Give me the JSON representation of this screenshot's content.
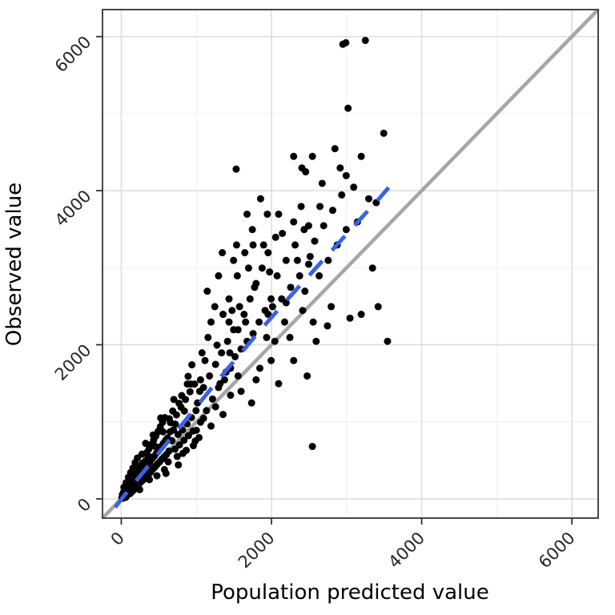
{
  "chart_data": {
    "type": "scatter",
    "title": "",
    "xlabel": "Population predicted value",
    "ylabel": "Observed value",
    "xlim": [
      -250,
      6350
    ],
    "ylim": [
      -250,
      6350
    ],
    "x_ticks": [
      0,
      2000,
      4000,
      6000
    ],
    "y_ticks": [
      0,
      2000,
      4000,
      6000
    ],
    "minor_ticks": [
      1000,
      3000,
      5000
    ],
    "grid": true,
    "tick_label_angle": 45,
    "legend": "none",
    "colors": {
      "point": "#000000",
      "identity_line": "#A6A6A6",
      "smooth_line": "#3A62E8",
      "grid_major": "#DEDEDE",
      "grid_minor": "#EFEFEF",
      "panel_border": "#333333",
      "tick": "#333333",
      "tick_text": "#262626",
      "panel_bg": "#FFFFFF"
    },
    "identity_line": {
      "from": [
        -250,
        -250
      ],
      "to": [
        6350,
        6350
      ],
      "width": 4.5
    },
    "smooth_line": {
      "width": 5,
      "dash": "24 18",
      "points": [
        [
          -80,
          -110
        ],
        [
          0,
          -5
        ],
        [
          200,
          235
        ],
        [
          400,
          475
        ],
        [
          600,
          715
        ],
        [
          800,
          955
        ],
        [
          1000,
          1195
        ],
        [
          1200,
          1435
        ],
        [
          1400,
          1670
        ],
        [
          1600,
          1900
        ],
        [
          1800,
          2130
        ],
        [
          2000,
          2355
        ],
        [
          2200,
          2575
        ],
        [
          2400,
          2790
        ],
        [
          2600,
          3005
        ],
        [
          2800,
          3220
        ],
        [
          3000,
          3435
        ],
        [
          3200,
          3650
        ],
        [
          3400,
          3860
        ],
        [
          3560,
          4040
        ]
      ]
    },
    "points": [
      [
        8,
        12
      ],
      [
        15,
        55
      ],
      [
        22,
        8
      ],
      [
        30,
        85
      ],
      [
        38,
        40
      ],
      [
        45,
        110
      ],
      [
        52,
        25
      ],
      [
        60,
        130
      ],
      [
        68,
        75
      ],
      [
        75,
        45
      ],
      [
        82,
        160
      ],
      [
        90,
        95
      ],
      [
        98,
        60
      ],
      [
        105,
        185
      ],
      [
        112,
        120
      ],
      [
        120,
        70
      ],
      [
        128,
        215
      ],
      [
        135,
        150
      ],
      [
        142,
        95
      ],
      [
        150,
        255
      ],
      [
        158,
        175
      ],
      [
        165,
        115
      ],
      [
        172,
        300
      ],
      [
        180,
        210
      ],
      [
        188,
        140
      ],
      [
        195,
        335
      ],
      [
        202,
        245
      ],
      [
        210,
        165
      ],
      [
        218,
        370
      ],
      [
        225,
        275
      ],
      [
        232,
        190
      ],
      [
        240,
        400
      ],
      [
        248,
        305
      ],
      [
        255,
        215
      ],
      [
        262,
        430
      ],
      [
        270,
        330
      ],
      [
        278,
        235
      ],
      [
        285,
        465
      ],
      [
        292,
        355
      ],
      [
        300,
        255
      ],
      [
        35,
        150
      ],
      [
        65,
        210
      ],
      [
        95,
        280
      ],
      [
        125,
        340
      ],
      [
        155,
        400
      ],
      [
        185,
        470
      ],
      [
        215,
        530
      ],
      [
        245,
        120
      ],
      [
        275,
        580
      ],
      [
        60,
        20
      ],
      [
        310,
        390
      ],
      [
        320,
        490
      ],
      [
        330,
        270
      ],
      [
        340,
        600
      ],
      [
        350,
        430
      ],
      [
        360,
        310
      ],
      [
        370,
        650
      ],
      [
        380,
        475
      ],
      [
        390,
        345
      ],
      [
        400,
        705
      ],
      [
        410,
        520
      ],
      [
        420,
        385
      ],
      [
        430,
        760
      ],
      [
        440,
        555
      ],
      [
        450,
        415
      ],
      [
        460,
        815
      ],
      [
        470,
        595
      ],
      [
        480,
        450
      ],
      [
        490,
        875
      ],
      [
        500,
        640
      ],
      [
        510,
        480
      ],
      [
        520,
        935
      ],
      [
        530,
        680
      ],
      [
        540,
        515
      ],
      [
        550,
        995
      ],
      [
        560,
        720
      ],
      [
        570,
        545
      ],
      [
        580,
        1055
      ],
      [
        590,
        760
      ],
      [
        600,
        575
      ],
      [
        325,
        720
      ],
      [
        375,
        250
      ],
      [
        425,
        830
      ],
      [
        475,
        300
      ],
      [
        525,
        1050
      ],
      [
        575,
        380
      ],
      [
        355,
        560
      ],
      [
        455,
        680
      ],
      [
        555,
        870
      ],
      [
        595,
        330
      ],
      [
        615,
        790
      ],
      [
        635,
        620
      ],
      [
        655,
        990
      ],
      [
        675,
        755
      ],
      [
        695,
        895
      ],
      [
        715,
        645
      ],
      [
        735,
        1090
      ],
      [
        755,
        835
      ],
      [
        775,
        700
      ],
      [
        795,
        1190
      ],
      [
        815,
        895
      ],
      [
        835,
        760
      ],
      [
        855,
        1290
      ],
      [
        875,
        975
      ],
      [
        895,
        820
      ],
      [
        915,
        1390
      ],
      [
        935,
        1055
      ],
      [
        955,
        880
      ],
      [
        975,
        1490
      ],
      [
        995,
        1145
      ],
      [
        625,
        480
      ],
      [
        685,
        1140
      ],
      [
        745,
        550
      ],
      [
        805,
        1340
      ],
      [
        865,
        630
      ],
      [
        925,
        1490
      ],
      [
        985,
        750
      ],
      [
        650,
        870
      ],
      [
        770,
        1240
      ],
      [
        890,
        1590
      ],
      [
        640,
        1040
      ],
      [
        760,
        440
      ],
      [
        880,
        1490
      ],
      [
        1000,
        890
      ],
      [
        700,
        1290
      ],
      [
        820,
        590
      ],
      [
        940,
        1740
      ],
      [
        720,
        970
      ],
      [
        840,
        1140
      ],
      [
        960,
        690
      ],
      [
        1015,
        1245
      ],
      [
        1055,
        995
      ],
      [
        1095,
        1445
      ],
      [
        1135,
        1145
      ],
      [
        1175,
        1595
      ],
      [
        1215,
        1295
      ],
      [
        1255,
        1745
      ],
      [
        1295,
        1445
      ],
      [
        1335,
        1895
      ],
      [
        1375,
        1545
      ],
      [
        1415,
        2045
      ],
      [
        1455,
        1695
      ],
      [
        1495,
        2195
      ],
      [
        1035,
        795
      ],
      [
        1115,
        1795
      ],
      [
        1195,
        945
      ],
      [
        1275,
        1995
      ],
      [
        1355,
        1095
      ],
      [
        1435,
        2295
      ],
      [
        1055,
        1545
      ],
      [
        1155,
        2095
      ],
      [
        1255,
        1195
      ],
      [
        1355,
        2395
      ],
      [
        1455,
        1345
      ],
      [
        1075,
        1895
      ],
      [
        1195,
        2295
      ],
      [
        1315,
        1495
      ],
      [
        1435,
        2595
      ],
      [
        1095,
        1045
      ],
      [
        1245,
        2495
      ],
      [
        1395,
        1645
      ],
      [
        1145,
        2695
      ],
      [
        1295,
        2895
      ],
      [
        1445,
        1895
      ],
      [
        1495,
        3095
      ],
      [
        1345,
        3195
      ],
      [
        1045,
        1395
      ],
      [
        1475,
        2445
      ],
      [
        1530,
        4280
      ],
      [
        1515,
        1845
      ],
      [
        1555,
        2195
      ],
      [
        1595,
        1945
      ],
      [
        1635,
        2395
      ],
      [
        1675,
        2045
      ],
      [
        1715,
        2595
      ],
      [
        1755,
        2145
      ],
      [
        1795,
        2795
      ],
      [
        1835,
        2295
      ],
      [
        1875,
        2995
      ],
      [
        1915,
        2445
      ],
      [
        1955,
        3195
      ],
      [
        1995,
        2595
      ],
      [
        1545,
        2895
      ],
      [
        1645,
        3195
      ],
      [
        1745,
        3495
      ],
      [
        1845,
        1695
      ],
      [
        1945,
        3695
      ],
      [
        1595,
        1395
      ],
      [
        1695,
        2995
      ],
      [
        1795,
        1545
      ],
      [
        1895,
        3295
      ],
      [
        1995,
        1795
      ],
      [
        1575,
        2495
      ],
      [
        1775,
        2745
      ],
      [
        1975,
        2945
      ],
      [
        1535,
        3295
      ],
      [
        1735,
        1245
      ],
      [
        1935,
        2095
      ],
      [
        1675,
        3695
      ],
      [
        1855,
        3895
      ],
      [
        1555,
        1595
      ],
      [
        1655,
        2295
      ],
      [
        1755,
        3295
      ],
      [
        1955,
        2395
      ],
      [
        2015,
        2495
      ],
      [
        2075,
        2895
      ],
      [
        2135,
        2595
      ],
      [
        2195,
        3095
      ],
      [
        2255,
        2745
      ],
      [
        2315,
        3295
      ],
      [
        2375,
        2895
      ],
      [
        2435,
        3495
      ],
      [
        2495,
        3045
      ],
      [
        2055,
        3395
      ],
      [
        2175,
        2295
      ],
      [
        2295,
        3595
      ],
      [
        2415,
        2445
      ],
      [
        2095,
        3695
      ],
      [
        2245,
        2095
      ],
      [
        2395,
        3795
      ],
      [
        2045,
        2045
      ],
      [
        2345,
        3095
      ],
      [
        2145,
        3445
      ],
      [
        2445,
        2695
      ],
      [
        2195,
        2545
      ],
      [
        2295,
        4445
      ],
      [
        2405,
        4295
      ],
      [
        2495,
        3545
      ],
      [
        2475,
        1595
      ],
      [
        2545,
        680
      ],
      [
        2095,
        1495
      ],
      [
        2295,
        1795
      ],
      [
        2455,
        4245
      ],
      [
        2515,
        3145
      ],
      [
        2575,
        3345
      ],
      [
        2635,
        2895
      ],
      [
        2695,
        3545
      ],
      [
        2755,
        3095
      ],
      [
        2815,
        3745
      ],
      [
        2875,
        3295
      ],
      [
        2935,
        3945
      ],
      [
        2995,
        3495
      ],
      [
        2555,
        2295
      ],
      [
        2675,
        4095
      ],
      [
        2795,
        2495
      ],
      [
        2915,
        4295
      ],
      [
        2595,
        2045
      ],
      [
        2745,
        2245
      ],
      [
        2950,
        5900
      ],
      [
        2990,
        5920
      ],
      [
        2995,
        4195
      ],
      [
        3045,
        2345
      ],
      [
        2645,
        3795
      ],
      [
        2845,
        4545
      ],
      [
        2545,
        4445
      ],
      [
        3020,
        5070
      ],
      [
        3145,
        3595
      ],
      [
        3250,
        5950
      ],
      [
        3195,
        4445
      ],
      [
        3295,
        3895
      ],
      [
        3395,
        3845
      ],
      [
        3495,
        4745
      ],
      [
        3345,
        2995
      ],
      [
        3545,
        2045
      ],
      [
        3195,
        2395
      ],
      [
        3095,
        4045
      ],
      [
        3420,
        2495
      ]
    ]
  }
}
